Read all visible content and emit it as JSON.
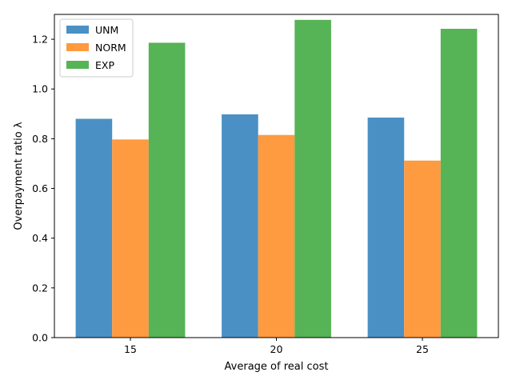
{
  "chart_data": {
    "type": "bar",
    "title": "",
    "xlabel": "Average of real cost",
    "ylabel": "Overpayment ratio λ",
    "categories": [
      "15",
      "20",
      "25"
    ],
    "series": [
      {
        "name": "UNM",
        "values": [
          0.88,
          0.898,
          0.885
        ],
        "color": "#4a90c4"
      },
      {
        "name": "NORM",
        "values": [
          0.797,
          0.815,
          0.712
        ],
        "color": "#fe9a3f"
      },
      {
        "name": "EXP",
        "values": [
          1.186,
          1.278,
          1.242
        ],
        "color": "#56b356"
      }
    ],
    "ylim": [
      0,
      1.3
    ],
    "yticks": [
      "0.0",
      "0.2",
      "0.4",
      "0.6",
      "0.8",
      "1.0",
      "1.2"
    ],
    "grid": false,
    "legend_position": "top-left"
  }
}
